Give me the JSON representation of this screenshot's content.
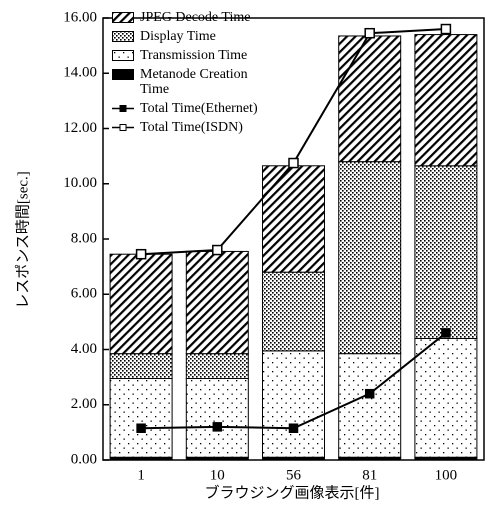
{
  "chart_data": {
    "type": "bar",
    "stacked": true,
    "x_label": "ブラウジング画像表示[件]",
    "y_label": "レスポンス時間[sec.]",
    "categories": [
      "1",
      "10",
      "56",
      "81",
      "100"
    ],
    "series": [
      {
        "name": "Metanode Creation Time",
        "color": "#000000",
        "values": [
          0.1,
          0.1,
          0.1,
          0.1,
          0.1
        ]
      },
      {
        "name": "Transmission Time",
        "color": "#000000",
        "values": [
          2.85,
          2.85,
          3.85,
          3.75,
          4.3
        ]
      },
      {
        "name": "Display Time",
        "color": "#000000",
        "values": [
          0.9,
          0.9,
          2.85,
          6.95,
          6.25
        ]
      },
      {
        "name": "JPEG Decode Time",
        "color": "#000000",
        "values": [
          3.6,
          3.7,
          3.85,
          4.55,
          4.75
        ]
      },
      {
        "name": "Total Time(Ethernet)",
        "type": "line",
        "color": "#000000",
        "values": [
          1.15,
          1.2,
          1.15,
          2.4,
          4.6
        ]
      },
      {
        "name": "Total Time(ISDN)",
        "type": "line",
        "color": "#000000",
        "values": [
          7.45,
          7.6,
          10.75,
          15.45,
          15.6
        ]
      }
    ],
    "ylim": [
      0,
      16
    ],
    "yticks": [
      {
        "value": 0,
        "label": "0.00"
      },
      {
        "value": 2,
        "label": "2.00"
      },
      {
        "value": 4,
        "label": "4.00"
      },
      {
        "value": 6,
        "label": "6.00"
      },
      {
        "value": 8,
        "label": "8.00"
      },
      {
        "value": 10,
        "label": "10.00"
      },
      {
        "value": 12,
        "label": "12.00"
      },
      {
        "value": 14,
        "label": "14.00"
      },
      {
        "value": 16,
        "label": "16.00"
      }
    ]
  }
}
